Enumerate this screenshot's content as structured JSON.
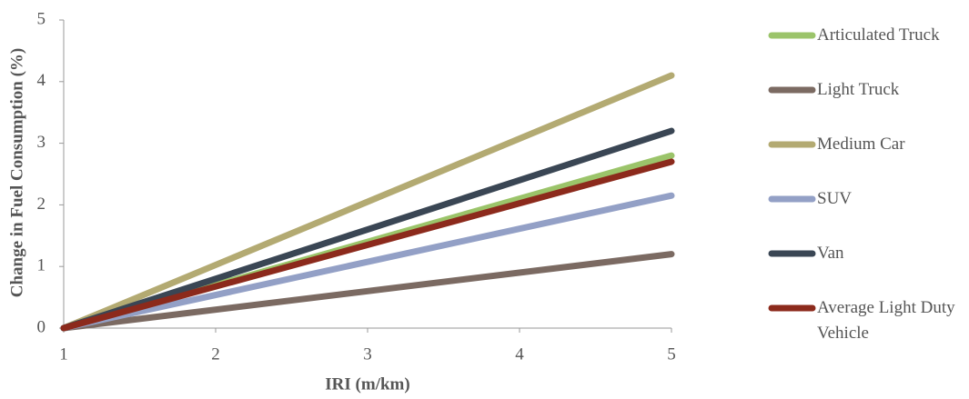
{
  "chart_data": {
    "type": "line",
    "x_label": "IRI (m/km)",
    "y_label": "Change in Fuel Consumption (%)",
    "x": [
      1,
      5
    ],
    "series": [
      {
        "name": "Articulated Truck",
        "color": "#9bc46a",
        "values": [
          0,
          2.8
        ]
      },
      {
        "name": "Light Truck",
        "color": "#7b6a62",
        "values": [
          0,
          1.2
        ]
      },
      {
        "name": "Medium Car",
        "color": "#b3aa72",
        "values": [
          0,
          4.1
        ]
      },
      {
        "name": "SUV",
        "color": "#93a0c6",
        "values": [
          0,
          2.15
        ]
      },
      {
        "name": "Van",
        "color": "#3a4654",
        "values": [
          0,
          3.2
        ]
      },
      {
        "name": "Average Light Duty Vehicle",
        "color": "#8c2a1c",
        "values": [
          0,
          2.7
        ]
      }
    ],
    "xlim": [
      1,
      5
    ],
    "xticks": [
      1,
      2,
      3,
      4,
      5
    ],
    "ylim": [
      0,
      5
    ],
    "yticks": [
      0,
      1,
      2,
      3,
      4,
      5
    ],
    "legend": "right",
    "grid": false
  }
}
